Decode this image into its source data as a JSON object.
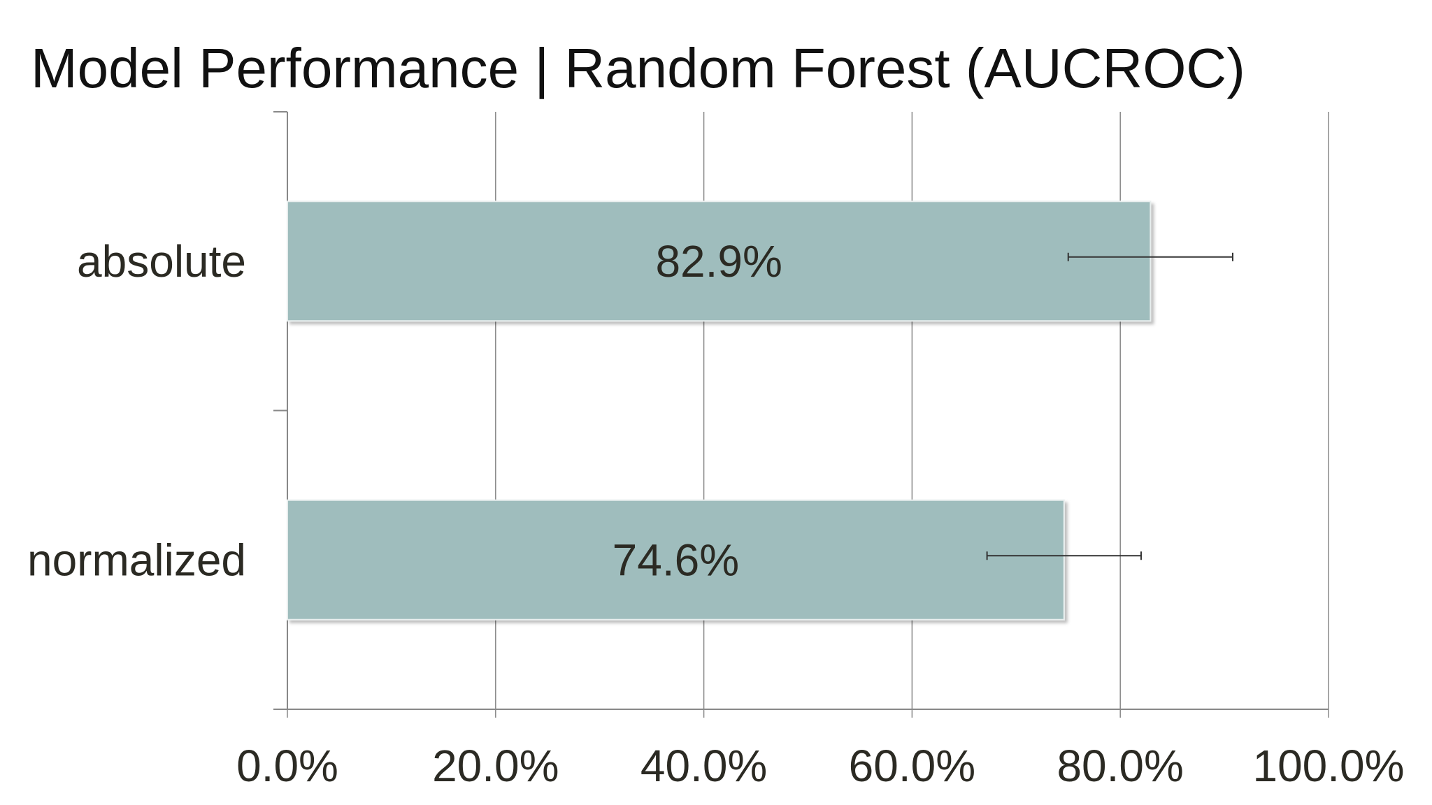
{
  "chart_data": {
    "type": "bar",
    "orientation": "horizontal",
    "title": "Model Performance | Random Forest (AUCROC)",
    "xlabel": "",
    "ylabel": "",
    "categories": [
      "absolute",
      "normalized"
    ],
    "values": [
      82.9,
      74.6
    ],
    "data_labels": [
      "82.9%",
      "74.6%"
    ],
    "error_bars": [
      {
        "low": 75.0,
        "high": 90.8
      },
      {
        "low": 67.2,
        "high": 82.0
      }
    ],
    "xlim": [
      0,
      100
    ],
    "x_ticks": [
      0,
      20,
      40,
      60,
      80,
      100
    ],
    "x_tick_labels": [
      "0.0%",
      "20.0%",
      "40.0%",
      "60.0%",
      "80.0%",
      "100.0%"
    ],
    "grid": true,
    "legend": "none",
    "colors": {
      "bar": "#9fbdbd",
      "grid": "#888888",
      "text": "#2b2a23",
      "error_bar": "#333333"
    }
  }
}
